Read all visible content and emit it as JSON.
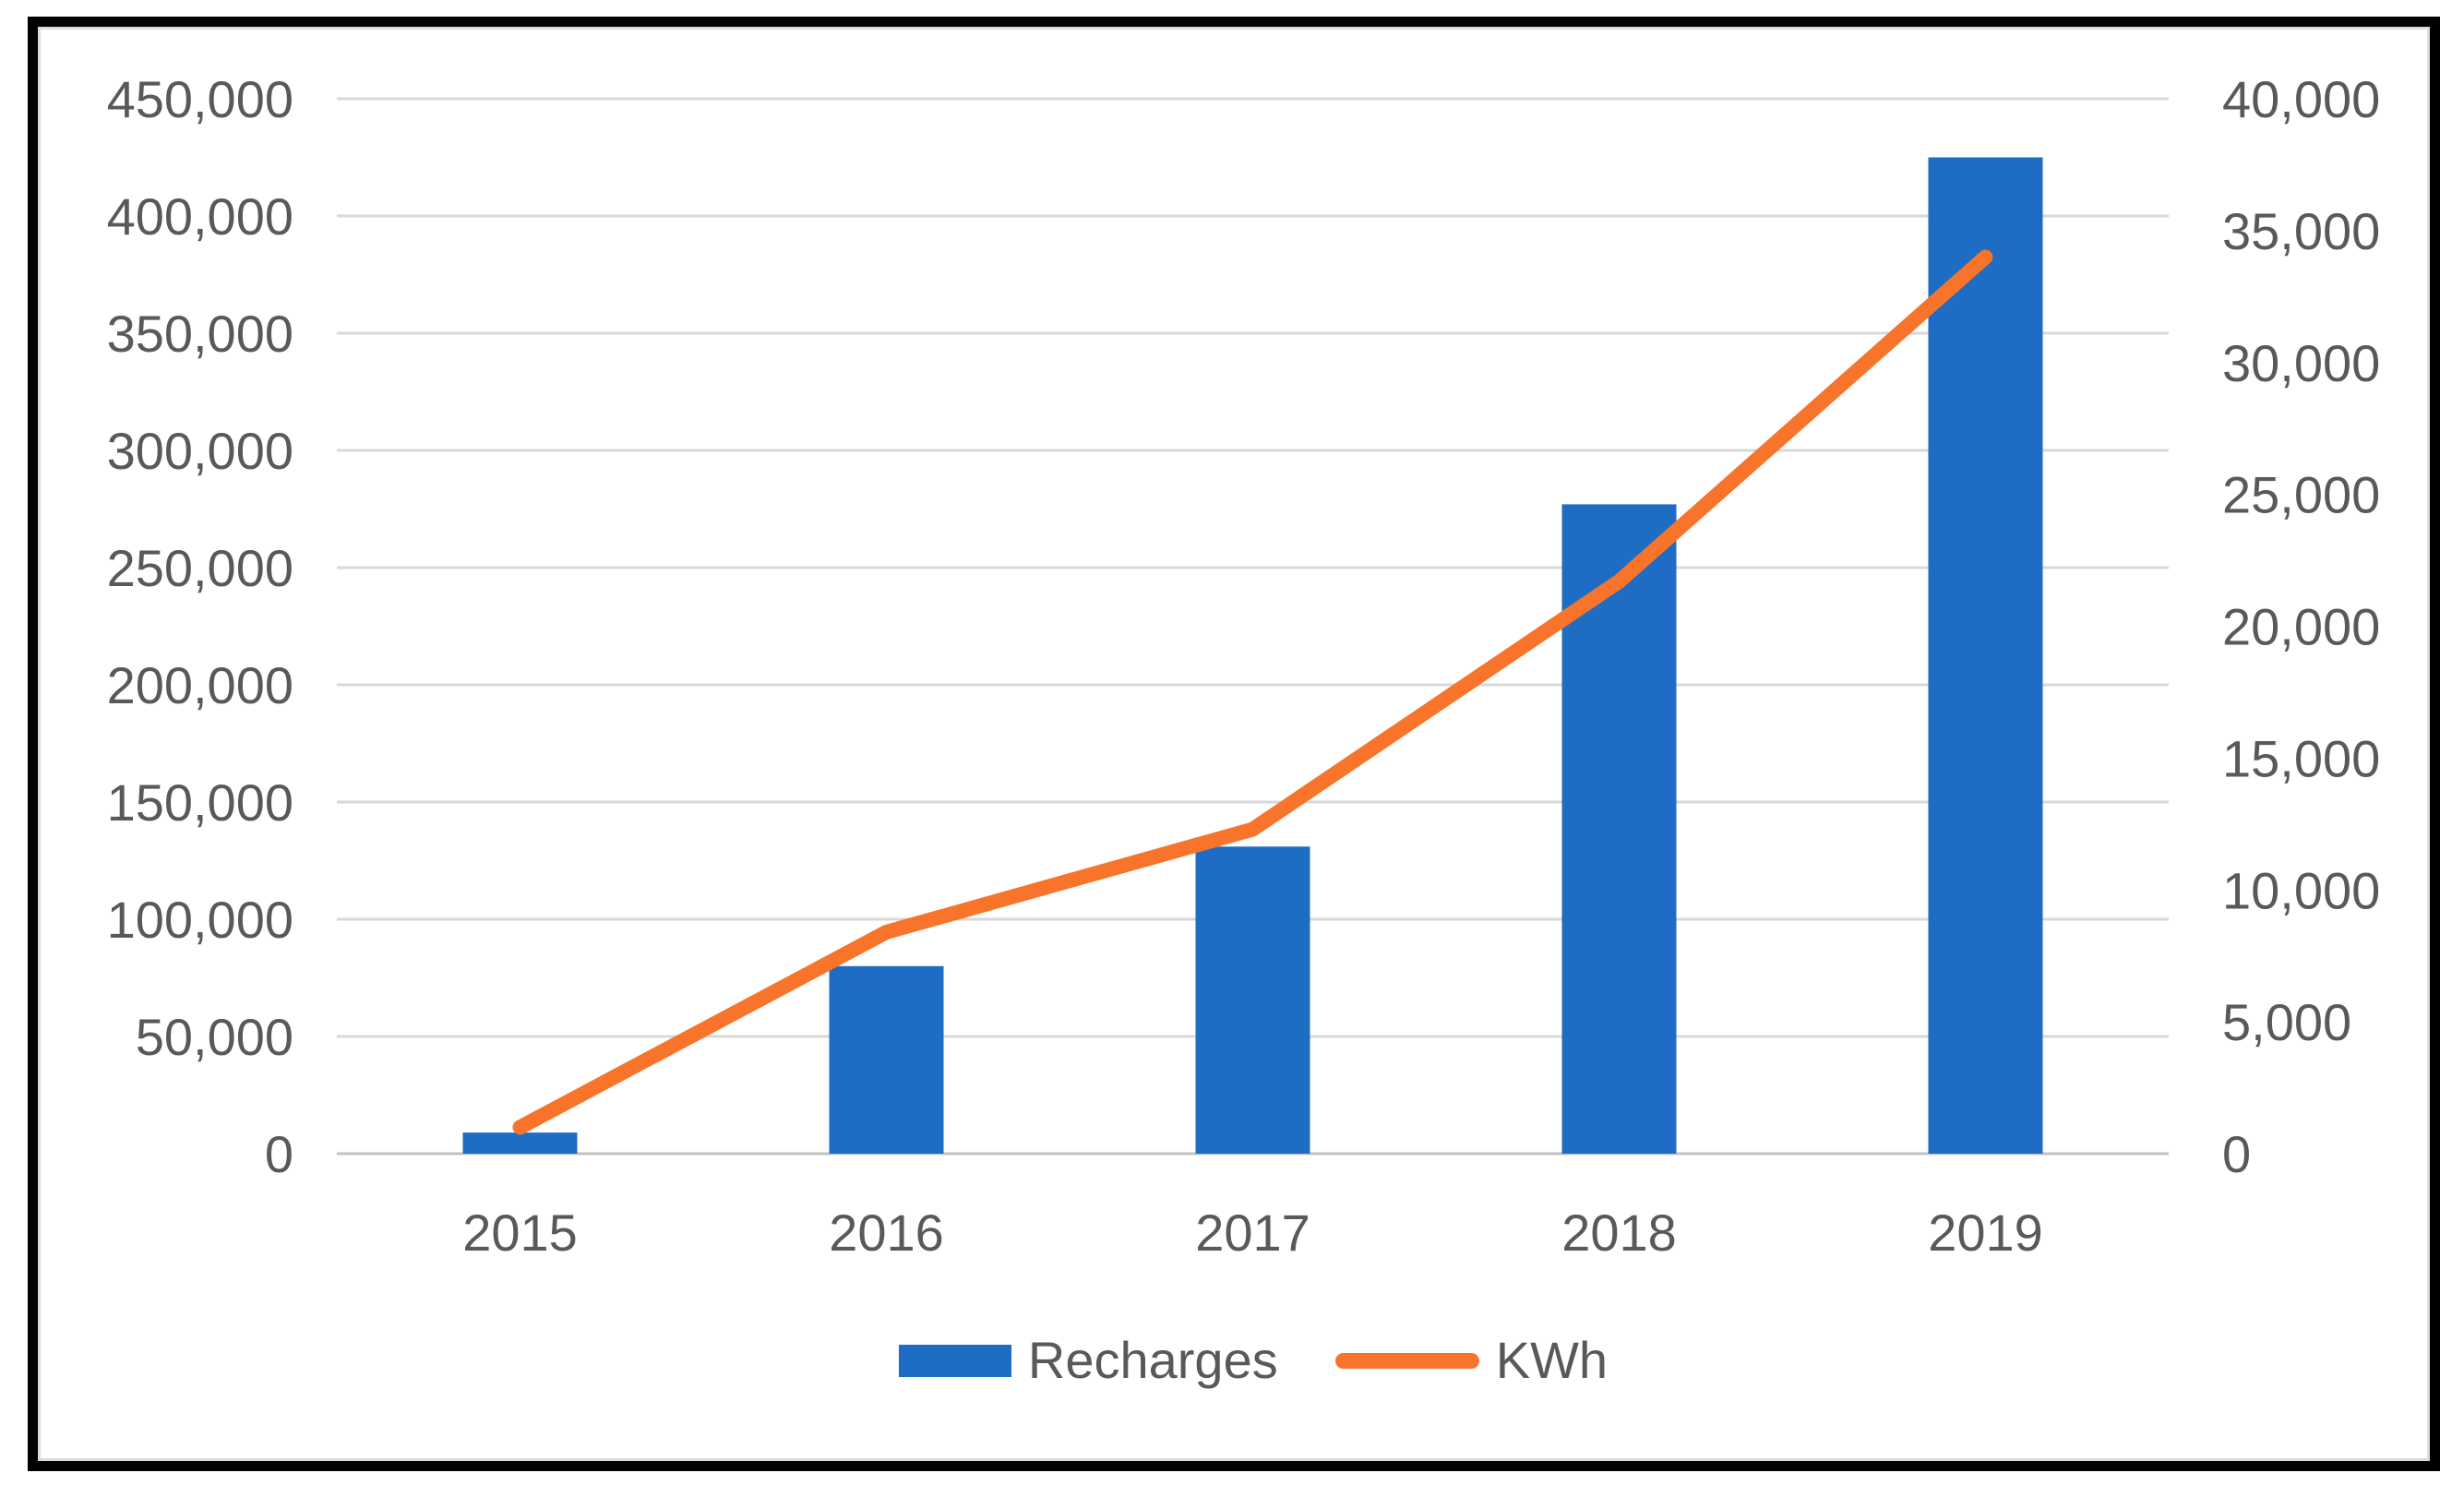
{
  "window": {
    "background": "#ffffff",
    "frame_color": "#000000",
    "inner_border_color": "#dcdcdc"
  },
  "chart_data": {
    "type": "combo-bar-line",
    "title": "",
    "xlabel": "",
    "ylabel": "",
    "grid": true,
    "legend_position": "bottom-center",
    "text_color": "#595959",
    "gridline_color": "#d8d8d8",
    "baseline_color": "#c2c2c2",
    "categories": [
      "2015",
      "2016",
      "2017",
      "2018",
      "2019"
    ],
    "series": [
      {
        "name": "Recharges",
        "type": "bar",
        "axis": "left",
        "color": "#1e6cc4",
        "values": [
          9000,
          80000,
          131000,
          277000,
          425000
        ]
      },
      {
        "name": "KWh",
        "type": "line",
        "axis": "right",
        "color": "#f8742a",
        "values": [
          1000,
          8400,
          12300,
          21700,
          34000
        ]
      }
    ],
    "left_axis": {
      "min": 0,
      "max": 450000,
      "step": 50000,
      "tick_labels_top_to_bottom": [
        "450,000",
        "400,000",
        "350,000",
        "300,000",
        "250,000",
        "200,000",
        "150,000",
        "100,000",
        "50,000",
        "0"
      ]
    },
    "right_axis": {
      "min": 0,
      "max": 40000,
      "step": 5000,
      "tick_labels_top_to_bottom": [
        "40,000",
        "35,000",
        "30,000",
        "25,000",
        "20,000",
        "15,000",
        "10,000",
        "5,000",
        "0"
      ]
    },
    "legend": [
      {
        "label": "Recharges",
        "swatch": "bar"
      },
      {
        "label": "KWh",
        "swatch": "line"
      }
    ]
  }
}
